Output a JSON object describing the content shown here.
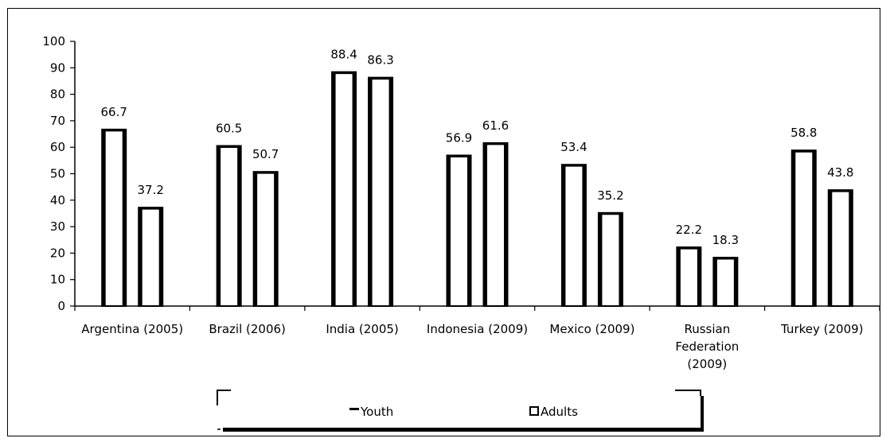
{
  "chart_data": {
    "type": "bar",
    "categories": [
      [
        "Argentina (2005)"
      ],
      [
        "Brazil (2006)"
      ],
      [
        "India (2005)"
      ],
      [
        "Indonesia (2009)"
      ],
      [
        "Mexico (2009)"
      ],
      [
        "Russian",
        "Federation",
        "(2009)"
      ],
      [
        "Turkey (2009)"
      ]
    ],
    "series": [
      {
        "name": "Youth",
        "values": [
          66.7,
          60.5,
          88.4,
          56.9,
          53.4,
          22.2,
          58.8
        ]
      },
      {
        "name": "Adults",
        "values": [
          37.2,
          50.7,
          86.3,
          61.6,
          35.2,
          18.3,
          43.8
        ]
      }
    ],
    "data_labels": {
      "Youth": [
        "66.7",
        "60.5",
        "88.4",
        "56.9",
        "53.4",
        "22.2",
        "58.8"
      ],
      "Adults": [
        "37.2",
        "50.7",
        "86.3",
        "61.6",
        "35.2",
        "18.3",
        "43.8"
      ]
    },
    "ylim": [
      0,
      100
    ],
    "yticks": [
      "0",
      "10",
      "20",
      "30",
      "40",
      "50",
      "60",
      "70",
      "80",
      "90",
      "100"
    ],
    "title": "",
    "xlabel": "",
    "ylabel": "",
    "grid": false,
    "legend_position": "bottom",
    "bar_fill": "#ffffff",
    "bar_stroke": "#000000"
  }
}
